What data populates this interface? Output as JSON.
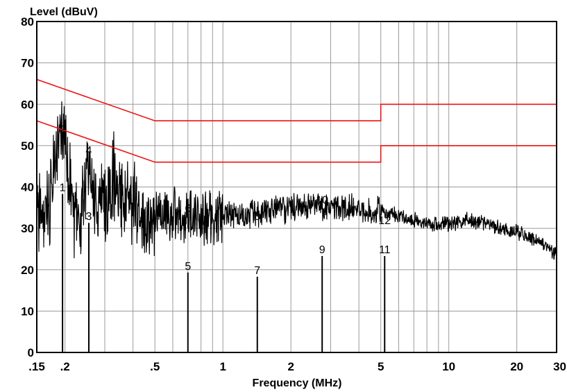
{
  "chart_data": {
    "type": "line",
    "title": "",
    "ylabel": "Level (dBuV)",
    "xlabel": "Frequency (MHz)",
    "x_scale": "log",
    "xlim": [
      0.15,
      30
    ],
    "ylim": [
      0,
      80
    ],
    "grid": true,
    "y_ticks": [
      {
        "value": 0,
        "label": "0"
      },
      {
        "value": 10,
        "label": "10"
      },
      {
        "value": 20,
        "label": "20"
      },
      {
        "value": 30,
        "label": "30"
      },
      {
        "value": 40,
        "label": "40"
      },
      {
        "value": 50,
        "label": "50"
      },
      {
        "value": 60,
        "label": "60"
      },
      {
        "value": 70,
        "label": "70"
      },
      {
        "value": 80,
        "label": "80"
      }
    ],
    "x_ticks": [
      {
        "value": 0.15,
        "label": ".15"
      },
      {
        "value": 0.2,
        "label": ".2"
      },
      {
        "value": 0.5,
        "label": ".5"
      },
      {
        "value": 1,
        "label": "1"
      },
      {
        "value": 2,
        "label": "2"
      },
      {
        "value": 5,
        "label": "5"
      },
      {
        "value": 10,
        "label": "10"
      },
      {
        "value": 20,
        "label": "20"
      },
      {
        "value": 30,
        "label": "30"
      }
    ],
    "x_minor_gridlines": [
      0.3,
      0.4,
      0.6,
      0.7,
      0.8,
      0.9,
      3,
      4,
      6,
      7,
      8,
      9
    ],
    "limit_lines": [
      {
        "color": "#ee1111",
        "points": [
          [
            0.15,
            66
          ],
          [
            0.5,
            56
          ],
          [
            5,
            56
          ],
          [
            5,
            60
          ],
          [
            30,
            60
          ]
        ]
      },
      {
        "color": "#ee1111",
        "points": [
          [
            0.15,
            56
          ],
          [
            0.5,
            46
          ],
          [
            5,
            46
          ],
          [
            5,
            50
          ],
          [
            30,
            50
          ]
        ]
      }
    ],
    "spectrum_color": "#000000",
    "spectrum_envelope": [
      [
        0.15,
        33
      ],
      [
        0.17,
        36
      ],
      [
        0.18,
        45
      ],
      [
        0.19,
        53
      ],
      [
        0.2,
        52
      ],
      [
        0.21,
        40
      ],
      [
        0.22,
        30
      ],
      [
        0.24,
        35
      ],
      [
        0.25,
        46
      ],
      [
        0.27,
        38
      ],
      [
        0.3,
        35
      ],
      [
        0.33,
        42
      ],
      [
        0.37,
        36
      ],
      [
        0.4,
        37
      ],
      [
        0.45,
        34
      ],
      [
        0.5,
        33
      ],
      [
        0.7,
        33
      ],
      [
        1.0,
        33
      ],
      [
        1.5,
        34
      ],
      [
        2.0,
        35
      ],
      [
        3.0,
        35
      ],
      [
        4.0,
        35
      ],
      [
        5.0,
        34
      ],
      [
        6.0,
        33
      ],
      [
        8.0,
        31
      ],
      [
        10.0,
        31
      ],
      [
        12.0,
        32
      ],
      [
        15.0,
        31
      ],
      [
        20.0,
        29
      ],
      [
        25.0,
        27
      ],
      [
        30.0,
        24
      ]
    ],
    "markers": [
      {
        "label": "1",
        "freq": 0.195,
        "level": 40
      },
      {
        "label": "2",
        "freq": 0.195,
        "level": 54
      },
      {
        "label": "3",
        "freq": 0.255,
        "level": 33
      },
      {
        "label": "4",
        "freq": 0.255,
        "level": 49
      },
      {
        "label": "5",
        "freq": 0.7,
        "level": 21
      },
      {
        "label": "6",
        "freq": 0.7,
        "level": 35
      },
      {
        "label": "7",
        "freq": 1.42,
        "level": 20
      },
      {
        "label": "8",
        "freq": 1.42,
        "level": 33
      },
      {
        "label": "9",
        "freq": 2.75,
        "level": 25
      },
      {
        "label": "10",
        "freq": 2.75,
        "level": 37
      },
      {
        "label": "11",
        "freq": 5.2,
        "level": 25
      },
      {
        "label": "12",
        "freq": 5.2,
        "level": 32
      }
    ]
  }
}
